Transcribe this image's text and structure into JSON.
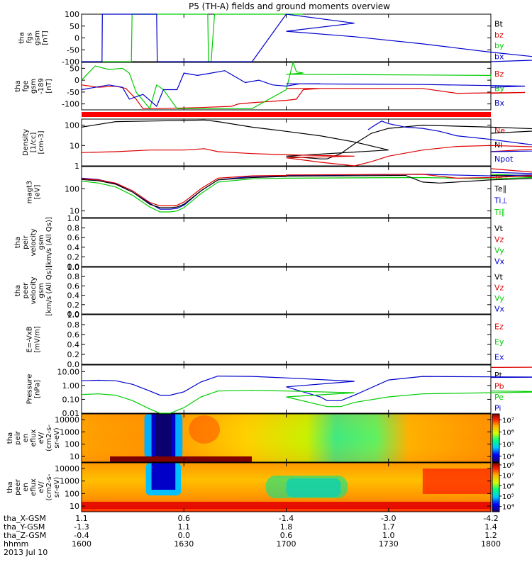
{
  "title": "P5 (TH-A) fields and ground moments overview",
  "colors": {
    "black": "#000000",
    "red": "#dd0000",
    "green": "#00cc00",
    "blue": "#0000cc",
    "accent_bar": "#ff0000"
  },
  "chart_data": [
    {
      "type": "line",
      "panel": "fgs",
      "ylabel": [
        "tha",
        "fgs",
        "gsm",
        "[nT]"
      ],
      "ylim": [
        -100,
        100
      ],
      "yticks": [
        "100",
        "50",
        "0",
        "-50",
        "-100"
      ],
      "legend": [
        {
          "label": "Bt",
          "color": "#000000"
        },
        {
          "label": "bz",
          "color": "#dd0000"
        },
        {
          "label": "by",
          "color": "#00cc00"
        },
        {
          "label": "bx",
          "color": "#0000cc"
        }
      ],
      "series": [
        {
          "color": "#00cc00",
          "x": [
            1606,
            1606.5,
            1607,
            1614.6,
            1614.8,
            1615.2,
            1636.7,
            1637,
            1637.2,
            1638,
            1639,
            1660,
            1663,
            1665
          ],
          "y": [
            -100,
            -100,
            -100,
            -100,
            100,
            100,
            100,
            100,
            -100,
            -100,
            100,
            100,
            100,
            100
          ]
        },
        {
          "color": "#0000cc",
          "x": [
            1600,
            1606,
            1606.1,
            1622,
            1622.2,
            1628,
            1640,
            1650,
            1660,
            1680,
            1700,
            1720,
            1740,
            1760,
            1780,
            1800
          ],
          "y": [
            -100,
            -100,
            100,
            100,
            -100,
            -100,
            -100,
            -100,
            100,
            62,
            28,
            5,
            -25,
            -60,
            -90,
            -100
          ]
        }
      ]
    },
    {
      "type": "line",
      "panel": "fge",
      "ylabel": [
        "tha",
        "fge",
        "gsm",
        "-189",
        "[nT]"
      ],
      "ylim": [
        -125,
        75
      ],
      "yticks": [
        "50",
        "0",
        "-50",
        "-100"
      ],
      "legend": [
        {
          "label": "Bz",
          "color": "#dd0000"
        },
        {
          "label": "By",
          "color": "#00cc00"
        },
        {
          "label": "Bx",
          "color": "#0000cc"
        }
      ],
      "series": [
        {
          "color": "#dd0000",
          "x": [
            1600,
            1605,
            1610,
            1613,
            1616,
            1618,
            1620,
            1622,
            1635,
            1644,
            1646,
            1650,
            1660,
            1663,
            1665,
            1670,
            1700,
            1740,
            1750,
            1770,
            1800
          ],
          "y": [
            -20,
            -30,
            -25,
            -35,
            -80,
            -120,
            -120,
            -120,
            -115,
            -110,
            -100,
            -95,
            -85,
            -80,
            -40,
            -35,
            -35,
            -35,
            -55,
            -52,
            -55
          ]
        },
        {
          "color": "#00cc00",
          "x": [
            1600,
            1604,
            1608,
            1612,
            1614,
            1616,
            1620,
            1622,
            1624,
            1628,
            1630,
            1635,
            1640,
            1650,
            1660,
            1662,
            1663,
            1665,
            1700,
            1740,
            1760,
            1800
          ],
          "y": [
            0,
            60,
            45,
            50,
            30,
            -50,
            -120,
            -20,
            -40,
            -120,
            -120,
            -120,
            -120,
            -120,
            -40,
            75,
            35,
            30,
            25,
            22,
            20,
            5
          ]
        },
        {
          "color": "#0000cc",
          "x": [
            1600,
            1604,
            1608,
            1612,
            1614,
            1618,
            1622,
            1624,
            1628,
            1630,
            1634,
            1638,
            1642,
            1645,
            1648,
            1652,
            1656,
            1660,
            1664,
            1670,
            1700,
            1740,
            1770,
            1800
          ],
          "y": [
            -40,
            -30,
            -20,
            -30,
            -80,
            -60,
            -110,
            -40,
            -40,
            30,
            20,
            30,
            40,
            15,
            -10,
            0,
            -20,
            -25,
            -15,
            -15,
            -15,
            -18,
            -25,
            -30
          ]
        }
      ]
    },
    {
      "type": "line",
      "panel": "density",
      "log": true,
      "ylabel": [
        "Density",
        "[1/cc]",
        "[cm-3]"
      ],
      "ylim": [
        1,
        200
      ],
      "yticks": [
        "100",
        "10",
        "1"
      ],
      "legend": [
        {
          "label": "Ne",
          "color": "#dd0000"
        },
        {
          "label": "Ni",
          "color": "#000000"
        },
        {
          "label": "Npot",
          "color": "#0000cc"
        }
      ],
      "series": [
        {
          "color": "#000000",
          "x": [
            1600,
            1610,
            1620,
            1630,
            1636,
            1640,
            1650,
            1660,
            1670,
            1680,
            1690,
            1700,
            1710,
            1712,
            1716,
            1720,
            1725,
            1730,
            1740,
            1760,
            1780,
            1800
          ],
          "y": [
            80,
            150,
            160,
            170,
            180,
            150,
            80,
            50,
            30,
            15,
            6,
            3,
            2.2,
            2.2,
            4,
            12,
            40,
            70,
            100,
            80,
            60,
            40
          ]
        },
        {
          "color": "#dd0000",
          "x": [
            1600,
            1610,
            1620,
            1630,
            1636,
            1640,
            1650,
            1660,
            1680,
            1700,
            1710,
            1720,
            1725,
            1730,
            1740,
            1750,
            1760,
            1780,
            1800
          ],
          "y": [
            4.5,
            5,
            6,
            6,
            7,
            5,
            4,
            3.5,
            3,
            2.5,
            1.5,
            1,
            1.6,
            3,
            6,
            9,
            10,
            8,
            5
          ]
        },
        {
          "color": "#0000cc",
          "x": [
            1724,
            1726,
            1728,
            1730,
            1735,
            1740,
            1745,
            1750,
            1760,
            1770,
            1780,
            1790,
            1800
          ],
          "y": [
            60,
            100,
            160,
            120,
            80,
            70,
            50,
            30,
            20,
            12,
            8,
            6,
            5
          ]
        }
      ]
    },
    {
      "type": "line",
      "panel": "moments",
      "log": true,
      "ylabel": [
        "magt3",
        "[eV]"
      ],
      "ylim": [
        5,
        1000
      ],
      "yticks": [
        "100",
        "10"
      ],
      "legend": [
        {
          "label": "Te⊥",
          "color": "#dd0000"
        },
        {
          "label": "Te∥",
          "color": "#000000"
        },
        {
          "label": "Ti⊥",
          "color": "#0000cc"
        },
        {
          "label": "Ti∥",
          "color": "#00cc00"
        }
      ],
      "series": [
        {
          "color": "#00cc00",
          "x": [
            1600,
            1605,
            1610,
            1615,
            1620,
            1623,
            1626,
            1628,
            1630,
            1635,
            1640,
            1650,
            1660,
            1700,
            1740,
            1760,
            1780,
            1800
          ],
          "y": [
            220,
            180,
            120,
            50,
            15,
            9,
            9,
            10,
            14,
            60,
            200,
            280,
            300,
            300,
            320,
            280,
            350,
            450
          ]
        },
        {
          "color": "#0000cc",
          "x": [
            1600,
            1605,
            1610,
            1615,
            1620,
            1623,
            1626,
            1628,
            1630,
            1635,
            1640,
            1650,
            1660,
            1700,
            1740,
            1760,
            1780,
            1800
          ],
          "y": [
            300,
            260,
            170,
            70,
            22,
            12,
            12,
            13,
            18,
            80,
            250,
            360,
            380,
            400,
            450,
            380,
            450,
            550
          ]
        },
        {
          "color": "#000000",
          "x": [
            1600,
            1605,
            1610,
            1615,
            1620,
            1623,
            1626,
            1628,
            1630,
            1635,
            1640,
            1650,
            1660,
            1700,
            1735,
            1740,
            1745,
            1760,
            1780,
            1800
          ],
          "y": [
            260,
            230,
            160,
            70,
            20,
            14,
            14,
            15,
            20,
            80,
            250,
            320,
            360,
            370,
            400,
            200,
            180,
            250,
            320,
            400
          ]
        },
        {
          "color": "#dd0000",
          "x": [
            1600,
            1605,
            1610,
            1615,
            1620,
            1623,
            1626,
            1628,
            1630,
            1635,
            1640,
            1650,
            1660,
            1700,
            1740,
            1750,
            1760,
            1780,
            1800
          ],
          "y": [
            280,
            250,
            180,
            80,
            24,
            17,
            17,
            18,
            25,
            100,
            300,
            380,
            400,
            420,
            450,
            300,
            320,
            450,
            800
          ]
        }
      ]
    },
    {
      "type": "line",
      "panel": "peir_velocity",
      "ylabel": [
        "tha",
        "peir",
        "velocity",
        "gsm",
        "[km/s (All Qs)]"
      ],
      "ylim": [
        0,
        1
      ],
      "yticks": [
        "1.0",
        "0.8",
        "0.6",
        "0.4",
        "0.2",
        "0.0"
      ],
      "legend": [
        {
          "label": "Vt",
          "color": "#000000"
        },
        {
          "label": "Vz",
          "color": "#dd0000"
        },
        {
          "label": "Vy",
          "color": "#00cc00"
        },
        {
          "label": "Vx",
          "color": "#0000cc"
        }
      ],
      "series": []
    },
    {
      "type": "line",
      "panel": "peer_velocity",
      "ylabel": [
        "tha",
        "peer",
        "velocity",
        "gsm",
        "[km/s (All Qs)]"
      ],
      "ylim": [
        0,
        1
      ],
      "yticks": [
        "1.0",
        "0.8",
        "0.6",
        "0.4",
        "0.2",
        "0.0"
      ],
      "legend": [
        {
          "label": "Vt",
          "color": "#000000"
        },
        {
          "label": "Vz",
          "color": "#dd0000"
        },
        {
          "label": "Vy",
          "color": "#00cc00"
        },
        {
          "label": "Vx",
          "color": "#0000cc"
        }
      ],
      "series": []
    },
    {
      "type": "line",
      "panel": "efield",
      "ylabel": [
        "E=-VxB",
        "[mV/m]"
      ],
      "ylim": [
        0,
        1
      ],
      "yticks": [
        "1.0",
        "0.8",
        "0.6",
        "0.4",
        "0.2",
        "0.0"
      ],
      "legend": [
        {
          "label": "Ez",
          "color": "#dd0000"
        },
        {
          "label": "Ey",
          "color": "#00cc00"
        },
        {
          "label": "Ex",
          "color": "#0000cc"
        }
      ],
      "series": []
    },
    {
      "type": "line",
      "panel": "pressure",
      "log": true,
      "ylabel": [
        "Pressure",
        "[nPa]"
      ],
      "ylim": [
        0.01,
        30
      ],
      "yticks": [
        "10.00",
        "1.00",
        "0.10",
        "0.01"
      ],
      "legend": [
        {
          "label": "Pt",
          "color": "#000000"
        },
        {
          "label": "Pb",
          "color": "#dd0000"
        },
        {
          "label": "Pe",
          "color": "#00cc00"
        },
        {
          "label": "Pi",
          "color": "#0000cc"
        }
      ],
      "series": [
        {
          "color": "#0000cc",
          "x": [
            1600,
            1605,
            1610,
            1615,
            1620,
            1623,
            1626,
            1630,
            1635,
            1640,
            1650,
            1660,
            1680,
            1700,
            1710,
            1712,
            1716,
            1720,
            1730,
            1740,
            1760,
            1780,
            1800
          ],
          "y": [
            2.2,
            2.4,
            2.2,
            1.2,
            0.4,
            0.2,
            0.2,
            0.35,
            1.8,
            4.8,
            4.5,
            3.5,
            2.0,
            0.8,
            0.15,
            0.08,
            0.08,
            0.2,
            2.5,
            4.5,
            4.2,
            4.0,
            3.8
          ]
        },
        {
          "color": "#00cc00",
          "x": [
            1600,
            1605,
            1610,
            1615,
            1620,
            1623,
            1626,
            1630,
            1635,
            1640,
            1650,
            1660,
            1680,
            1700,
            1712,
            1716,
            1720,
            1730,
            1740,
            1760,
            1780,
            1800
          ],
          "y": [
            0.22,
            0.25,
            0.2,
            0.08,
            0.02,
            0.01,
            0.01,
            0.025,
            0.15,
            0.4,
            0.45,
            0.4,
            0.3,
            0.15,
            0.03,
            0.03,
            0.06,
            0.15,
            0.25,
            0.3,
            0.35,
            0.4
          ]
        },
        {
          "color": "#dd0000",
          "x": [
            1788,
            1792,
            1796,
            1800
          ],
          "y": [
            28,
            25,
            22,
            20
          ]
        }
      ]
    },
    {
      "type": "heatmap",
      "panel": "peir_eflux",
      "ylabel": [
        "tha",
        "peir",
        "en",
        "eflux",
        "eV/",
        "(cm2-s-",
        "sr-eV)"
      ],
      "yticks": [
        "10000",
        "1000",
        "100",
        "10"
      ],
      "colorbar": {
        "ticks": [
          "10⁷",
          "10⁶",
          "10⁵",
          "10⁴"
        ],
        "ticks_log": [
          7,
          6,
          5,
          4
        ],
        "range_log": [
          3.5,
          7.5
        ]
      }
    },
    {
      "type": "heatmap",
      "panel": "peer_eflux",
      "ylabel": [
        "tha",
        "peer",
        "en",
        "eflux",
        "eV/",
        "(cm2-s-",
        "sr-eV)"
      ],
      "yticks": [
        "10000",
        "1000",
        "100",
        "10"
      ],
      "colorbar": {
        "ticks": [
          "10⁸",
          "10⁷",
          "10⁶",
          "10⁵",
          "10⁴"
        ],
        "ticks_log": [
          8,
          7,
          6,
          5,
          4
        ],
        "range_log": [
          3.5,
          8.2
        ]
      }
    }
  ],
  "xaxis": {
    "range": [
      1600,
      1800
    ],
    "ticks": [
      1600,
      1630,
      1700,
      1730,
      1800
    ],
    "rows": [
      {
        "label": "tha_X-GSM",
        "values": [
          "1.1",
          "0.6",
          "-1.4",
          "-3.0",
          "-4.2"
        ]
      },
      {
        "label": "tha_Y-GSM",
        "values": [
          "-1.3",
          "1.1",
          "1.8",
          "1.7",
          "1.4"
        ]
      },
      {
        "label": "tha_Z-GSM",
        "values": [
          "-0.4",
          "0.0",
          "0.6",
          "1.0",
          "1.2"
        ]
      },
      {
        "label": "hhmm",
        "values": [
          "1600",
          "1630",
          "1700",
          "1730",
          "1800"
        ]
      }
    ],
    "date": "2013 Jul 10"
  }
}
